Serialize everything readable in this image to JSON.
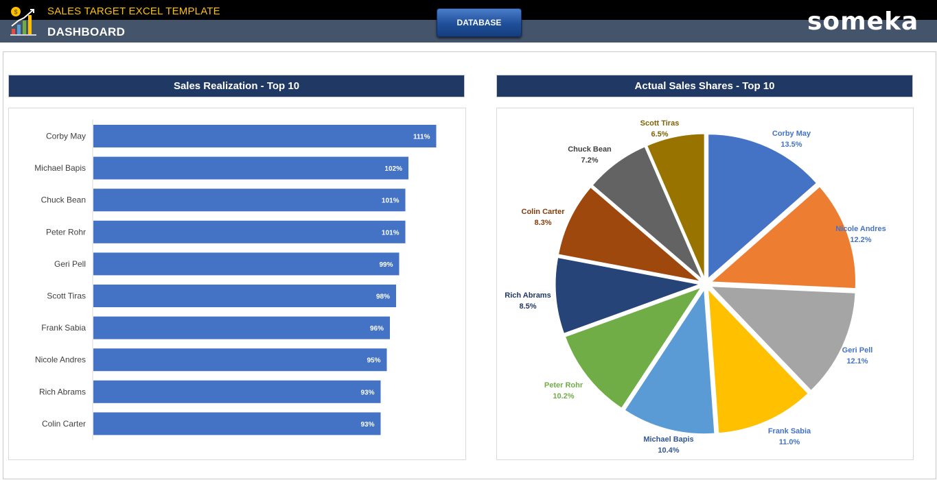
{
  "header": {
    "app_title": "SALES TARGET EXCEL TEMPLATE",
    "page_title": "DASHBOARD",
    "database_button": "DATABASE",
    "brand": "someka",
    "logo_icon": "sales-chart-coin-icon"
  },
  "colors": {
    "header_top": "#000000",
    "header_bottom": "#44546a",
    "app_title": "#ffc000",
    "panel_title_bg": "#203864",
    "bar": "#4472c4"
  },
  "panels": {
    "left_title": "Sales Realization - Top 10",
    "right_title": "Actual Sales Shares - Top 10"
  },
  "chart_data": [
    {
      "type": "bar",
      "orientation": "horizontal",
      "title": "Sales Realization - Top 10",
      "categories": [
        "Corby May",
        "Michael Bapis",
        "Chuck Bean",
        "Peter Rohr",
        "Geri Pell",
        "Scott Tiras",
        "Frank Sabia",
        "Nicole Andres",
        "Rich Abrams",
        "Colin Carter"
      ],
      "values": [
        111,
        102,
        101,
        101,
        99,
        98,
        96,
        95,
        93,
        93
      ],
      "labels": [
        "111%",
        "102%",
        "101%",
        "101%",
        "99%",
        "98%",
        "96%",
        "95%",
        "93%",
        "93%"
      ],
      "unit": "%",
      "xlim": [
        0,
        120
      ],
      "grid": false,
      "color": "#4472c4"
    },
    {
      "type": "pie",
      "title": "Actual Sales Shares - Top 10",
      "slices": [
        {
          "name": "Corby May",
          "value": 13.5,
          "label": "13.5%",
          "color": "#4472c4",
          "label_color": "#4472c4"
        },
        {
          "name": "Nicole Andres",
          "value": 12.2,
          "label": "12.2%",
          "color": "#ed7d31",
          "label_color": "#4472c4"
        },
        {
          "name": "Geri Pell",
          "value": 12.1,
          "label": "12.1%",
          "color": "#a5a5a5",
          "label_color": "#4472c4"
        },
        {
          "name": "Frank Sabia",
          "value": 11.0,
          "label": "11.0%",
          "color": "#ffc000",
          "label_color": "#4472c4"
        },
        {
          "name": "Michael Bapis",
          "value": 10.4,
          "label": "10.4%",
          "color": "#5b9bd5",
          "label_color": "#2f5597"
        },
        {
          "name": "Peter Rohr",
          "value": 10.2,
          "label": "10.2%",
          "color": "#70ad47",
          "label_color": "#70ad47"
        },
        {
          "name": "Rich Abrams",
          "value": 8.5,
          "label": "8.5%",
          "color": "#264478",
          "label_color": "#203864"
        },
        {
          "name": "Colin Carter",
          "value": 8.3,
          "label": "8.3%",
          "color": "#9e480e",
          "label_color": "#843c0c"
        },
        {
          "name": "Chuck Bean",
          "value": 7.2,
          "label": "7.2%",
          "color": "#636363",
          "label_color": "#404040"
        },
        {
          "name": "Scott Tiras",
          "value": 6.5,
          "label": "6.5%",
          "color": "#997300",
          "label_color": "#7f6000"
        }
      ]
    }
  ]
}
